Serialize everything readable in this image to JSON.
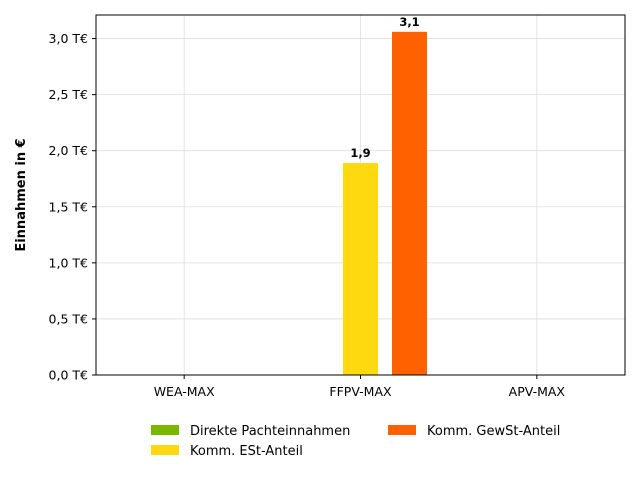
{
  "chart_data": {
    "type": "bar",
    "categories": [
      "WEA-MAX",
      "FFPV-MAX",
      "APV-MAX"
    ],
    "series": [
      {
        "name": "Direkte Pachteinnahmen",
        "color": "#7ab800",
        "values": [
          0,
          0,
          0
        ]
      },
      {
        "name": "Komm. ESt-Anteil",
        "color": "#ffd90f",
        "values": [
          0,
          1.89,
          0
        ]
      },
      {
        "name": "Komm. GewSt-Anteil",
        "color": "#ff6000",
        "values": [
          0,
          3.06,
          0
        ]
      }
    ],
    "data_labels": [
      {
        "category": "FFPV-MAX",
        "series": "Komm. ESt-Anteil",
        "text": "1,9"
      },
      {
        "category": "FFPV-MAX",
        "series": "Komm. GewSt-Anteil",
        "text": "3,1"
      }
    ],
    "title": "",
    "xlabel": "",
    "ylabel": "Einnahmen in €",
    "ylim": [
      0,
      3.21
    ],
    "yticks": [
      0,
      0.5,
      1.0,
      1.5,
      2.0,
      2.5,
      3.0
    ],
    "ytick_labels": [
      "0,0 T€",
      "0,5 T€",
      "1,0 T€",
      "1,5 T€",
      "2,0 T€",
      "2,5 T€",
      "3,0 T€"
    ],
    "grid": true,
    "legend_position": "bottom-center",
    "legend_columns": 2
  }
}
